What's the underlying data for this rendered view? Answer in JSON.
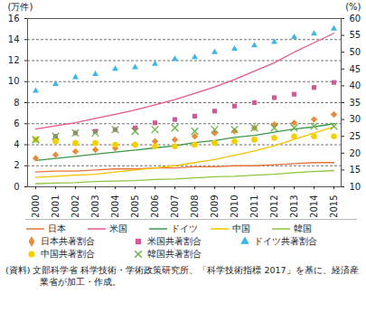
{
  "chart_data": {
    "type": "line",
    "y_label": "(万件)",
    "y2_label": "(%)",
    "source": "(資料) 文部科学省 科学技術・学術政策研究所、「科学技術指標 2017」を基に、経済産業省が加工・作成。",
    "categories": [
      "2000",
      "2001",
      "2002",
      "2003",
      "2004",
      "2005",
      "2006",
      "2007",
      "2008",
      "2009",
      "2010",
      "2011",
      "2012",
      "2013",
      "2014",
      "2015"
    ],
    "ylim": [
      0,
      16
    ],
    "yticks": [
      0,
      2,
      4,
      6,
      8,
      10,
      12,
      14,
      16
    ],
    "y2lim": [
      10,
      60
    ],
    "y2ticks": [
      10,
      15,
      20,
      25,
      30,
      35,
      40,
      45,
      50,
      55,
      60
    ],
    "grid": true,
    "legend": "bottom",
    "series": [
      {
        "name": "日本",
        "type": "line",
        "color": "#e8743b",
        "values": [
          1.4,
          1.5,
          1.5,
          1.6,
          1.7,
          1.7,
          1.8,
          1.8,
          1.9,
          1.9,
          2.0,
          2.0,
          2.1,
          2.2,
          2.3,
          2.3
        ]
      },
      {
        "name": "米国",
        "type": "line",
        "color": "#e8558e",
        "values": [
          5.5,
          5.8,
          6.1,
          6.5,
          6.9,
          7.3,
          7.8,
          8.3,
          8.9,
          9.5,
          10.2,
          11.0,
          11.8,
          12.8,
          13.7,
          14.6
        ]
      },
      {
        "name": "ドイツ",
        "type": "line",
        "color": "#3a9a4a",
        "values": [
          2.5,
          2.7,
          2.9,
          3.1,
          3.3,
          3.5,
          3.7,
          3.9,
          4.2,
          4.4,
          4.7,
          4.9,
          5.2,
          5.5,
          5.7,
          6.0
        ]
      },
      {
        "name": "中国",
        "type": "line",
        "color": "#f2c200",
        "values": [
          0.9,
          1.0,
          1.1,
          1.2,
          1.4,
          1.6,
          1.8,
          2.0,
          2.3,
          2.6,
          3.0,
          3.4,
          3.9,
          4.5,
          5.1,
          5.7
        ]
      },
      {
        "name": "韓国",
        "type": "line",
        "color": "#8cc63f",
        "values": [
          0.3,
          0.35,
          0.4,
          0.5,
          0.55,
          0.6,
          0.7,
          0.75,
          0.85,
          0.95,
          1.0,
          1.1,
          1.2,
          1.35,
          1.45,
          1.55
        ]
      },
      {
        "name": "日本共著割合",
        "type": "scatter",
        "axis": "y2",
        "marker": "diamond",
        "color": "#e8893b",
        "values": [
          18.5,
          19.5,
          20.5,
          21,
          21.5,
          22.5,
          23.5,
          24,
          25,
          26,
          26.5,
          27.5,
          28.5,
          29,
          30,
          31.5
        ]
      },
      {
        "name": "米国共著割合",
        "type": "scatter",
        "axis": "y2",
        "marker": "square",
        "color": "#d9559a",
        "values": [
          24,
          25,
          26,
          26.5,
          27,
          27.5,
          29,
          30,
          31,
          32.5,
          34,
          35,
          36.5,
          37.5,
          39.5,
          41
        ]
      },
      {
        "name": "ドイツ共著割合",
        "type": "scatter",
        "axis": "y2",
        "marker": "triangle",
        "color": "#3ab7e8",
        "values": [
          38.5,
          40.5,
          42.5,
          43.5,
          45,
          45.5,
          46.5,
          48,
          48.5,
          50,
          51,
          52,
          53,
          54.5,
          55.5,
          57
        ]
      },
      {
        "name": "中国共著割合",
        "type": "scatter",
        "axis": "y2",
        "marker": "circle",
        "color": "#f5d000",
        "values": [
          24,
          23.5,
          23,
          23,
          22.5,
          22.5,
          22,
          22,
          22.5,
          23,
          23.5,
          24,
          24.5,
          25,
          25,
          25
        ]
      },
      {
        "name": "韓国共著割合",
        "type": "scatter",
        "axis": "y2",
        "marker": "times",
        "color": "#6ab04c",
        "values": [
          24,
          25,
          26,
          26,
          27,
          26.5,
          27,
          27.5,
          26.5,
          27,
          27,
          27.5,
          27.5,
          27.5,
          28,
          28
        ]
      }
    ]
  }
}
